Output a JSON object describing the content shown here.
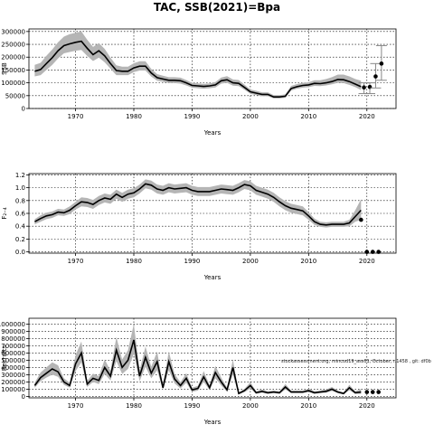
{
  "title": "TAC, SSB(2021)=Bpa",
  "note": "stockassessment.org, mincod19_ass01, October, r.1458 , git: df0b",
  "chart_data": [
    {
      "type": "area",
      "title": "TAC, SSB(2021)=Bpa",
      "xlabel": "Years",
      "ylabel": "SSB",
      "xlim": [
        1962,
        2025
      ],
      "ylim": [
        0,
        310000
      ],
      "xticks": [
        1970,
        1980,
        1990,
        2000,
        2010,
        2020
      ],
      "yticks": [
        0,
        50000,
        100000,
        150000,
        200000,
        250000,
        300000
      ],
      "ytick_labels": [
        "0",
        "50000",
        "100000",
        "150000",
        "200000",
        "250000",
        "300000"
      ],
      "grid": true,
      "x": [
        1963,
        1964,
        1965,
        1966,
        1967,
        1968,
        1969,
        1970,
        1971,
        1972,
        1973,
        1974,
        1975,
        1976,
        1977,
        1978,
        1979,
        1980,
        1981,
        1982,
        1983,
        1984,
        1985,
        1986,
        1987,
        1988,
        1989,
        1990,
        1991,
        1992,
        1993,
        1994,
        1995,
        1996,
        1997,
        1998,
        1999,
        2000,
        2001,
        2002,
        2003,
        2004,
        2005,
        2006,
        2007,
        2008,
        2009,
        2010,
        2011,
        2012,
        2013,
        2014,
        2015,
        2016,
        2017,
        2018,
        2019
      ],
      "series": [
        {
          "values": [
            145000,
            152000,
            175000,
            198000,
            225000,
            245000,
            252000,
            258000,
            262000,
            235000,
            210000,
            225000,
            205000,
            175000,
            148000,
            145000,
            145000,
            158000,
            165000,
            165000,
            138000,
            120000,
            115000,
            110000,
            110000,
            108000,
            100000,
            90000,
            88000,
            86000,
            88000,
            92000,
            108000,
            112000,
            100000,
            98000,
            82000,
            65000,
            60000,
            55000,
            55000,
            45000,
            45000,
            48000,
            78000,
            85000,
            90000,
            92000,
            98000,
            97000,
            100000,
            105000,
            113000,
            112000,
            105000,
            95000,
            85000
          ],
          "lower": [
            125000,
            130000,
            150000,
            170000,
            195000,
            215000,
            220000,
            225000,
            228000,
            205000,
            185000,
            198000,
            180000,
            155000,
            130000,
            130000,
            130000,
            142000,
            148000,
            148000,
            124000,
            108000,
            104000,
            99000,
            99000,
            97000,
            90000,
            81000,
            79000,
            77000,
            79000,
            82000,
            97000,
            100000,
            89000,
            87000,
            73000,
            57000,
            52000,
            48000,
            48000,
            39000,
            39000,
            42000,
            70000,
            77000,
            81000,
            83000,
            88000,
            87000,
            90000,
            94000,
            100000,
            99000,
            92000,
            83000,
            72000
          ],
          "upper": [
            170000,
            178000,
            205000,
            230000,
            258000,
            280000,
            290000,
            295000,
            300000,
            268000,
            240000,
            255000,
            232000,
            198000,
            168000,
            163000,
            163000,
            176000,
            184000,
            184000,
            154000,
            134000,
            128000,
            122000,
            122000,
            120000,
            111000,
            100000,
            98000,
            96000,
            98000,
            103000,
            121000,
            126000,
            113000,
            111000,
            93000,
            74000,
            69000,
            63000,
            63000,
            52000,
            52000,
            55000,
            88000,
            95000,
            100000,
            102000,
            110000,
            110000,
            115000,
            122000,
            132000,
            132000,
            125000,
            115000,
            108000
          ]
        }
      ],
      "forecast_points": [
        {
          "x": 2019.5,
          "y": 82000,
          "lo": 58000,
          "hi": 100000
        },
        {
          "x": 2020.5,
          "y": 84000,
          "lo": 58000,
          "hi": 100000
        },
        {
          "x": 2021.5,
          "y": 125000,
          "lo": 80000,
          "hi": 175000
        },
        {
          "x": 2022.5,
          "y": 175000,
          "lo": 110000,
          "hi": 245000
        }
      ]
    },
    {
      "type": "area",
      "xlabel": "Years",
      "ylabel": "F₂₋₄",
      "xlim": [
        1962,
        2025
      ],
      "ylim": [
        -0.02,
        1.22
      ],
      "xticks": [
        1970,
        1980,
        1990,
        2000,
        2010,
        2020
      ],
      "yticks": [
        0.0,
        0.2,
        0.4,
        0.6,
        0.8,
        1.0,
        1.2
      ],
      "ytick_labels": [
        "0.0",
        "0.2",
        "0.4",
        "0.6",
        "0.8",
        "1.0",
        "1.2"
      ],
      "grid": true,
      "x": [
        1963,
        1964,
        1965,
        1966,
        1967,
        1968,
        1969,
        1970,
        1971,
        1972,
        1973,
        1974,
        1975,
        1976,
        1977,
        1978,
        1979,
        1980,
        1981,
        1982,
        1983,
        1984,
        1985,
        1986,
        1987,
        1988,
        1989,
        1990,
        1991,
        1992,
        1993,
        1994,
        1995,
        1996,
        1997,
        1998,
        1999,
        2000,
        2001,
        2002,
        2003,
        2004,
        2005,
        2006,
        2007,
        2008,
        2009,
        2010,
        2011,
        2012,
        2013,
        2014,
        2015,
        2016,
        2017,
        2018,
        2019
      ],
      "series": [
        {
          "values": [
            0.47,
            0.52,
            0.56,
            0.58,
            0.62,
            0.61,
            0.65,
            0.72,
            0.78,
            0.77,
            0.74,
            0.8,
            0.84,
            0.82,
            0.9,
            0.85,
            0.9,
            0.92,
            0.98,
            1.06,
            1.04,
            0.98,
            0.96,
            1.0,
            0.98,
            0.99,
            1.0,
            0.96,
            0.94,
            0.94,
            0.94,
            0.96,
            0.98,
            0.97,
            0.96,
            1.0,
            1.05,
            1.03,
            0.96,
            0.93,
            0.9,
            0.85,
            0.78,
            0.72,
            0.68,
            0.66,
            0.64,
            0.56,
            0.47,
            0.43,
            0.42,
            0.43,
            0.43,
            0.43,
            0.45,
            0.55,
            0.65
          ],
          "lower": [
            0.43,
            0.47,
            0.51,
            0.53,
            0.57,
            0.56,
            0.59,
            0.66,
            0.71,
            0.7,
            0.67,
            0.73,
            0.77,
            0.75,
            0.83,
            0.78,
            0.83,
            0.85,
            0.91,
            0.99,
            0.97,
            0.91,
            0.89,
            0.93,
            0.91,
            0.92,
            0.93,
            0.89,
            0.87,
            0.87,
            0.87,
            0.89,
            0.91,
            0.9,
            0.89,
            0.93,
            0.98,
            0.96,
            0.89,
            0.86,
            0.83,
            0.78,
            0.71,
            0.65,
            0.61,
            0.59,
            0.57,
            0.5,
            0.42,
            0.39,
            0.38,
            0.39,
            0.39,
            0.39,
            0.4,
            0.47,
            0.5
          ],
          "upper": [
            0.51,
            0.57,
            0.61,
            0.63,
            0.67,
            0.66,
            0.71,
            0.78,
            0.85,
            0.84,
            0.81,
            0.87,
            0.91,
            0.89,
            0.97,
            0.92,
            0.97,
            0.99,
            1.05,
            1.13,
            1.11,
            1.05,
            1.03,
            1.07,
            1.05,
            1.06,
            1.07,
            1.03,
            1.01,
            1.01,
            1.01,
            1.03,
            1.05,
            1.04,
            1.03,
            1.07,
            1.12,
            1.1,
            1.03,
            1.0,
            0.97,
            0.92,
            0.85,
            0.79,
            0.75,
            0.73,
            0.71,
            0.62,
            0.52,
            0.47,
            0.46,
            0.47,
            0.47,
            0.47,
            0.5,
            0.65,
            0.82
          ]
        }
      ],
      "forecast_points": [
        {
          "x": 2019.0,
          "y": 0.5
        },
        {
          "x": 2020.0,
          "y": 0.0
        },
        {
          "x": 2021.0,
          "y": 0.0
        },
        {
          "x": 2022.0,
          "y": 0.0
        }
      ]
    },
    {
      "type": "area",
      "xlabel": "Years",
      "ylabel": "Recruits",
      "xlim": [
        1962,
        2025
      ],
      "ylim": [
        -20000,
        1080000
      ],
      "xticks": [
        1970,
        1980,
        1990,
        2000,
        2010,
        2020
      ],
      "yticks": [
        0,
        100000,
        200000,
        300000,
        400000,
        500000,
        600000,
        700000,
        800000,
        900000,
        1000000
      ],
      "ytick_labels": [
        "0",
        "100000",
        "200000",
        "300000",
        "400000",
        "500000",
        "600000",
        "700000",
        "800000",
        "900000",
        "1000000"
      ],
      "grid": true,
      "x": [
        1963,
        1964,
        1965,
        1966,
        1967,
        1968,
        1969,
        1970,
        1971,
        1972,
        1973,
        1974,
        1975,
        1976,
        1977,
        1978,
        1979,
        1980,
        1981,
        1982,
        1983,
        1984,
        1985,
        1986,
        1987,
        1988,
        1989,
        1990,
        1991,
        1992,
        1993,
        1994,
        1995,
        1996,
        1997,
        1998,
        1999,
        2000,
        2001,
        2002,
        2003,
        2004,
        2005,
        2006,
        2007,
        2008,
        2009,
        2010,
        2011,
        2012,
        2013,
        2014,
        2015,
        2016,
        2017,
        2018,
        2019
      ],
      "series": [
        {
          "values": [
            150000,
            260000,
            320000,
            380000,
            340000,
            200000,
            150000,
            450000,
            600000,
            170000,
            250000,
            220000,
            400000,
            280000,
            640000,
            400000,
            500000,
            780000,
            280000,
            540000,
            320000,
            480000,
            120000,
            480000,
            240000,
            150000,
            250000,
            90000,
            110000,
            270000,
            120000,
            330000,
            200000,
            90000,
            400000,
            40000,
            80000,
            150000,
            50000,
            70000,
            50000,
            60000,
            50000,
            130000,
            60000,
            60000,
            60000,
            80000,
            50000,
            60000,
            70000,
            100000,
            60000,
            40000,
            120000,
            50000,
            60000
          ],
          "lower": [
            120000,
            210000,
            260000,
            300000,
            270000,
            160000,
            120000,
            350000,
            470000,
            130000,
            200000,
            170000,
            310000,
            220000,
            490000,
            310000,
            380000,
            590000,
            210000,
            410000,
            250000,
            360000,
            90000,
            360000,
            180000,
            110000,
            190000,
            65000,
            80000,
            200000,
            90000,
            250000,
            150000,
            65000,
            300000,
            28000,
            58000,
            110000,
            35000,
            50000,
            35000,
            45000,
            35000,
            95000,
            45000,
            45000,
            45000,
            60000,
            35000,
            45000,
            50000,
            75000,
            45000,
            28000,
            85000,
            35000,
            35000
          ],
          "upper": [
            190000,
            330000,
            400000,
            470000,
            430000,
            250000,
            190000,
            570000,
            760000,
            215000,
            315000,
            280000,
            510000,
            355000,
            820000,
            510000,
            640000,
            1000000,
            360000,
            690000,
            410000,
            620000,
            155000,
            620000,
            310000,
            195000,
            320000,
            120000,
            145000,
            350000,
            155000,
            420000,
            260000,
            120000,
            510000,
            55000,
            105000,
            195000,
            70000,
            95000,
            70000,
            80000,
            70000,
            170000,
            80000,
            80000,
            80000,
            105000,
            70000,
            80000,
            95000,
            130000,
            80000,
            55000,
            160000,
            70000,
            100000
          ]
        }
      ],
      "forecast_points": [
        {
          "x": 2020.0,
          "y": 60000
        },
        {
          "x": 2021.0,
          "y": 60000
        },
        {
          "x": 2022.0,
          "y": 60000
        }
      ]
    }
  ]
}
